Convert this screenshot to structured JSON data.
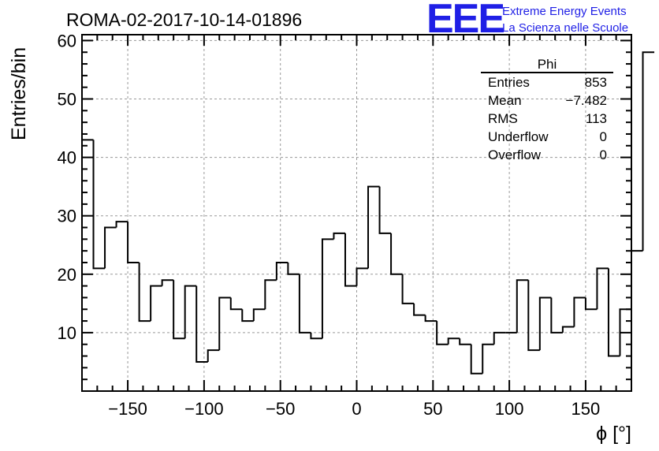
{
  "header": {
    "title": "ROMA-02-2017-10-14-01896",
    "logo": "EEE",
    "logo_line1": "Extreme Energy Events",
    "logo_line2": "La Scienza nelle Scuole",
    "logo_color": "#1f1fe6"
  },
  "stats": {
    "title": "Phi",
    "rows": [
      {
        "label": "Entries",
        "value": "853"
      },
      {
        "label": "Mean",
        "value": "−7.482"
      },
      {
        "label": "RMS",
        "value": "113"
      },
      {
        "label": "Underflow",
        "value": "0"
      },
      {
        "label": "Overflow",
        "value": "0"
      }
    ]
  },
  "chart_data": {
    "type": "bar",
    "histogram": true,
    "xlabel": "ϕ [°]",
    "ylabel": "Entries/bin",
    "xlim": [
      -180,
      180
    ],
    "ylim": [
      0,
      61
    ],
    "bin_width": 7.5,
    "grid": true,
    "x_ticks": [
      -150,
      -100,
      -50,
      0,
      50,
      100,
      150
    ],
    "x_tick_labels": [
      "−150",
      "−100",
      "−50",
      "0",
      "50",
      "100",
      "150"
    ],
    "y_ticks": [
      10,
      20,
      30,
      40,
      50,
      60
    ],
    "y_tick_labels": [
      "10",
      "20",
      "30",
      "40",
      "50",
      "60"
    ],
    "values": [
      43,
      21,
      28,
      29,
      22,
      12,
      18,
      19,
      9,
      18,
      5,
      7,
      16,
      14,
      12,
      14,
      19,
      22,
      20,
      10,
      9,
      26,
      27,
      18,
      21,
      35,
      27,
      20,
      15,
      13,
      12,
      8,
      9,
      8,
      3,
      8,
      10,
      10,
      19,
      7,
      16,
      10,
      11,
      16,
      14,
      21,
      6,
      14,
      24,
      58
    ]
  }
}
